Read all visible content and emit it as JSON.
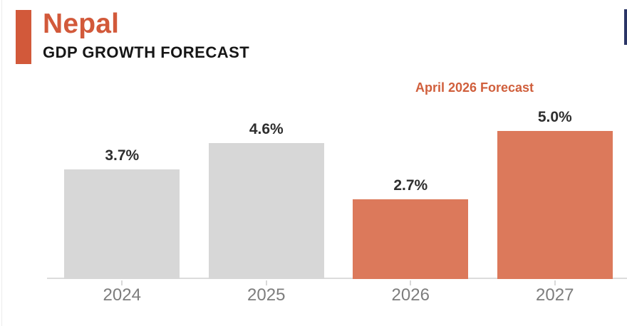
{
  "header": {
    "title": "Nepal",
    "subtitle": "GDP GROWTH FORECAST",
    "accent_color": "#D2593A",
    "title_color": "#D2593A"
  },
  "annotation": {
    "label": "April 2026 Forecast",
    "color": "#D05F3C"
  },
  "chart_data": {
    "type": "bar",
    "title": "Nepal",
    "subtitle": "GDP GROWTH FORECAST",
    "categories": [
      "2024",
      "2025",
      "2026",
      "2027"
    ],
    "values": [
      3.7,
      4.6,
      2.7,
      5.0
    ],
    "value_labels": [
      "3.7%",
      "4.6%",
      "2.7%",
      "5.0%"
    ],
    "bar_colors": [
      "#D7D7D7",
      "#D7D7D7",
      "#DC795B",
      "#DC795B"
    ],
    "historical_color": "#D7D7D7",
    "forecast_color": "#DC795B",
    "annotations": [
      "April 2026 Forecast"
    ],
    "xlabel": "",
    "ylabel": "",
    "ylim": [
      0,
      5.5
    ],
    "grid": false,
    "legend": "none",
    "axis_color": "#DCDCDC",
    "tick_color": "#D9D9D9",
    "value_label_color": "#2E2E2E",
    "tick_label_color": "#7D7D7D"
  },
  "decor": {
    "right_edge_strip_color": "#2B3566"
  }
}
